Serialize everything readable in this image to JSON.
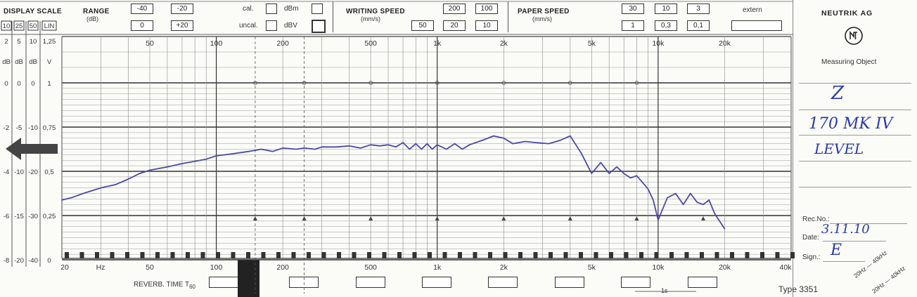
{
  "display_scale": {
    "title": "DISPLAY SCALE",
    "cols": [
      "10",
      "25",
      "50",
      "LIN"
    ],
    "top_values": [
      "2",
      "5",
      "10",
      "1,25"
    ],
    "units": [
      "dB",
      "dB",
      "dB",
      "V"
    ],
    "rows": [
      [
        "0",
        "0",
        "0",
        "1"
      ],
      [
        "-2",
        "-5",
        "-10",
        "0,75"
      ],
      [
        "-4",
        "-10",
        "-20",
        "0,5"
      ],
      [
        "-6",
        "-15",
        "-30",
        "0,25"
      ],
      [
        "-8",
        "-20",
        "-40",
        "0"
      ]
    ]
  },
  "range": {
    "title": "RANGE",
    "unit": "(dB)",
    "values": [
      "-40",
      "-20",
      "0",
      "+20"
    ]
  },
  "cal": {
    "cal": "cal.",
    "uncal": "uncal.",
    "dbm": "dBm",
    "dbv": "dBV"
  },
  "writing_speed": {
    "title": "WRITING SPEED",
    "unit": "(mm/s)",
    "values": [
      "200",
      "100",
      "50",
      "20",
      "10"
    ]
  },
  "paper_speed": {
    "title": "PAPER SPEED",
    "unit": "(mm/s)",
    "values": [
      "30",
      "10",
      "3",
      "1",
      "0,3",
      "0,1"
    ],
    "extern": "extern"
  },
  "brand": {
    "name": "NEUTRIK AG",
    "measuring_object": "Measuring Object",
    "logo_text": "NTI"
  },
  "handwritten": {
    "line1": "Z",
    "line2": "170 MK IV",
    "line3": "LEVEL",
    "date": "3.11.10",
    "sign": "E"
  },
  "form": {
    "rec_no": "Rec.No.:",
    "date": "Date:",
    "sign": "Sign.:",
    "type": "Type 3351",
    "range1": "20Hz — 40kHz",
    "range2": "20Hz — 40kHz"
  },
  "reverb": {
    "label": "REVERB. TIME T",
    "sub": "60",
    "one_s": "1s"
  },
  "chart_data": {
    "type": "line",
    "xscale": "log",
    "xlim": [
      20,
      40000
    ],
    "x_ticks_top": [
      "50",
      "100",
      "200",
      "500",
      "1k",
      "2k",
      "5k",
      "10k",
      "20k"
    ],
    "x_ticks_bottom": [
      "20",
      "Hz",
      "50",
      "100",
      "200",
      "500",
      "1k",
      "2k",
      "5k",
      "10k",
      "20k",
      "40k"
    ],
    "y_label_rows": [
      "0",
      "-2",
      "-4",
      "-6",
      "-8"
    ],
    "ylim": [
      -8,
      0
    ],
    "color": "#4a4aa8",
    "series": [
      {
        "x": [
          20,
          22,
          25,
          30,
          35,
          40,
          45,
          50,
          60,
          70,
          80,
          90,
          100,
          110,
          120,
          140,
          160,
          180,
          200,
          230,
          250,
          280,
          300,
          350,
          400,
          450,
          500,
          550,
          600,
          650,
          700,
          750,
          800,
          850,
          900,
          950,
          1000,
          1100,
          1200,
          1300,
          1400,
          1600,
          1800,
          2000,
          2200,
          2500,
          2800,
          3200,
          3600,
          4000,
          4500,
          5000,
          5500,
          6000,
          6500,
          7000,
          7500,
          8000,
          8500,
          9000,
          9500,
          10000,
          11000,
          12000,
          13000,
          14000,
          15000,
          16000,
          17000,
          18000,
          20000
        ],
        "y": [
          -5.3,
          -5.2,
          -5.0,
          -4.75,
          -4.6,
          -4.35,
          -4.1,
          -3.95,
          -3.8,
          -3.65,
          -3.55,
          -3.45,
          -3.3,
          -3.25,
          -3.2,
          -3.1,
          -3.0,
          -3.1,
          -2.95,
          -3.0,
          -2.95,
          -3.0,
          -2.9,
          -2.9,
          -2.85,
          -2.95,
          -2.8,
          -2.85,
          -2.8,
          -2.9,
          -2.7,
          -3.0,
          -2.75,
          -3.0,
          -2.75,
          -3.0,
          -2.8,
          -3.0,
          -2.75,
          -3.0,
          -2.8,
          -2.6,
          -2.4,
          -2.5,
          -2.75,
          -2.65,
          -2.7,
          -2.75,
          -2.6,
          -2.4,
          -3.2,
          -4.1,
          -3.6,
          -4.1,
          -3.8,
          -4.1,
          -4.3,
          -4.2,
          -4.5,
          -4.8,
          -5.3,
          -6.2,
          -5.2,
          -5.0,
          -5.5,
          -5.0,
          -5.4,
          -5.5,
          -5.3,
          -5.9,
          -6.6
        ]
      }
    ]
  }
}
